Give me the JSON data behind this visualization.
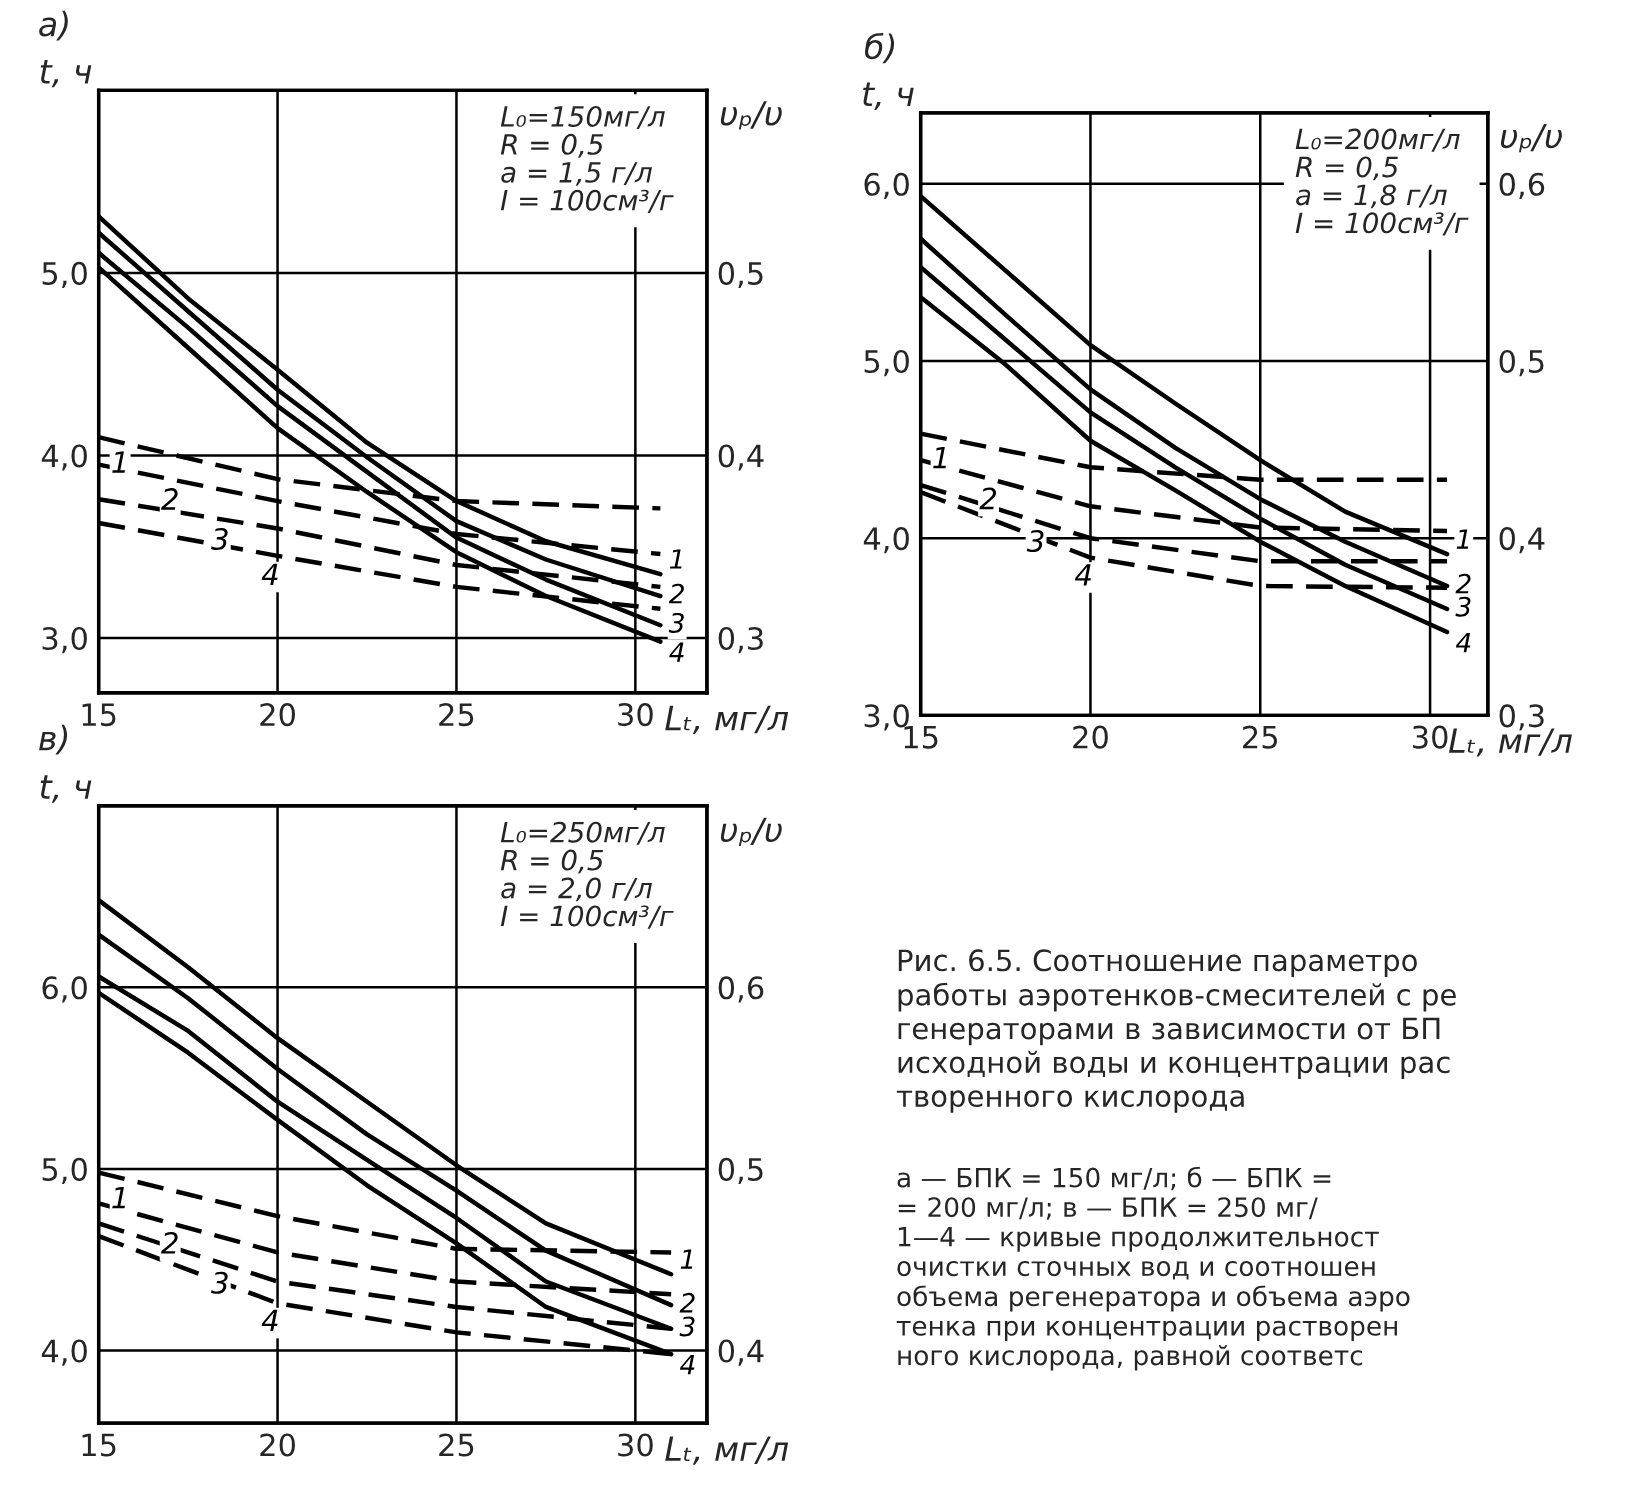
{
  "chart_data": [
    {
      "type": "line",
      "title": "а)",
      "xlabel": "Lₜ, мг/л",
      "ylabel": "t, ч",
      "y2label": "υₚ/υ",
      "grid": true,
      "xlim": [
        15,
        32
      ],
      "xticks": [
        15,
        20,
        25,
        30
      ],
      "ylim": [
        2.7,
        6.0
      ],
      "yticks": [
        {
          "value": 3,
          "label": "3,0"
        },
        {
          "value": 4,
          "label": "4,0"
        },
        {
          "value": 5,
          "label": "5,0"
        }
      ],
      "y2lim": [
        0.27,
        0.6
      ],
      "y2ticks": [
        {
          "value": 0.3,
          "label": "0,3"
        },
        {
          "value": 0.4,
          "label": "0,4"
        },
        {
          "value": 0.5,
          "label": "0,5"
        }
      ],
      "annotations": [
        "L₀=150мг/л",
        "R = 0,5",
        "a = 1,5 г/л",
        "I = 100см³/г"
      ],
      "series": [
        {
          "name": "1",
          "color": "#000000",
          "line_style": "solid",
          "x": [
            15,
            17.5,
            20,
            22.5,
            25,
            27.5,
            30.7
          ],
          "values": [
            5.31,
            4.86,
            4.47,
            4.07,
            3.75,
            3.53,
            3.35
          ]
        },
        {
          "name": "2",
          "color": "#000000",
          "line_style": "solid",
          "x": [
            15,
            17.5,
            20,
            22.5,
            25,
            27.5,
            30.7
          ],
          "values": [
            5.22,
            4.79,
            4.36,
            3.99,
            3.64,
            3.43,
            3.23
          ]
        },
        {
          "name": "3",
          "color": "#000000",
          "line_style": "solid",
          "x": [
            15,
            17.5,
            20,
            22.5,
            25,
            27.5,
            30.7
          ],
          "values": [
            5.11,
            4.7,
            4.27,
            3.91,
            3.55,
            3.32,
            3.07
          ]
        },
        {
          "name": "4",
          "color": "#000000",
          "line_style": "solid",
          "x": [
            15,
            17.5,
            20,
            22.5,
            25,
            27.5,
            30.7
          ],
          "values": [
            5.03,
            4.59,
            4.15,
            3.8,
            3.47,
            3.23,
            2.98
          ]
        },
        {
          "name": "1",
          "color": "#000000",
          "line_style": "dashed",
          "axis": "y2",
          "x": [
            15,
            20,
            25,
            30.7
          ],
          "values": [
            0.41,
            0.387,
            0.375,
            0.371
          ]
        },
        {
          "name": "2",
          "color": "#000000",
          "line_style": "dashed",
          "axis": "y2",
          "x": [
            15,
            20,
            25,
            30.7
          ],
          "values": [
            0.395,
            0.375,
            0.357,
            0.346
          ]
        },
        {
          "name": "3",
          "color": "#000000",
          "line_style": "dashed",
          "axis": "y2",
          "x": [
            15,
            20,
            25,
            30.7
          ],
          "values": [
            0.376,
            0.36,
            0.34,
            0.328
          ]
        },
        {
          "name": "4",
          "color": "#000000",
          "line_style": "dashed",
          "axis": "y2",
          "x": [
            15,
            20,
            25,
            30.7
          ],
          "values": [
            0.363,
            0.345,
            0.328,
            0.316
          ]
        }
      ]
    },
    {
      "type": "line",
      "title": "б)",
      "xlabel": "Lₜ, мг/л",
      "ylabel": "t, ч",
      "y2label": "υₚ/υ",
      "grid": true,
      "xlim": [
        15,
        31.7
      ],
      "xticks": [
        15,
        20,
        25,
        30
      ],
      "ylim": [
        3.0,
        6.4
      ],
      "yticks": [
        {
          "value": 3,
          "label": "3,0"
        },
        {
          "value": 4,
          "label": "4,0"
        },
        {
          "value": 5,
          "label": "5,0"
        },
        {
          "value": 6,
          "label": "6,0"
        }
      ],
      "y2lim": [
        0.3,
        0.64
      ],
      "y2ticks": [
        {
          "value": 0.3,
          "label": "0,3"
        },
        {
          "value": 0.4,
          "label": "0,4"
        },
        {
          "value": 0.5,
          "label": "0,5"
        },
        {
          "value": 0.6,
          "label": "0,6"
        }
      ],
      "annotations": [
        "L₀=200мг/л",
        "R = 0,5",
        "a = 1,8 г/л",
        "I = 100см³/г"
      ],
      "series": [
        {
          "name": "1",
          "color": "#000000",
          "line_style": "solid",
          "x": [
            15,
            17.5,
            20,
            22.5,
            25,
            27.5,
            30.5
          ],
          "values": [
            5.93,
            5.51,
            5.09,
            4.76,
            4.44,
            4.15,
            3.91
          ]
        },
        {
          "name": "2",
          "color": "#000000",
          "line_style": "solid",
          "x": [
            15,
            17.5,
            20,
            22.5,
            25,
            27.5,
            30.5
          ],
          "values": [
            5.69,
            5.26,
            4.84,
            4.51,
            4.22,
            3.98,
            3.73
          ]
        },
        {
          "name": "3",
          "color": "#000000",
          "line_style": "solid",
          "x": [
            15,
            17.5,
            20,
            22.5,
            25,
            27.5,
            30.5
          ],
          "values": [
            5.53,
            5.12,
            4.71,
            4.4,
            4.11,
            3.85,
            3.6
          ]
        },
        {
          "name": "4",
          "color": "#000000",
          "line_style": "solid",
          "x": [
            15,
            17.5,
            20,
            22.5,
            25,
            27.5,
            30.5
          ],
          "values": [
            5.36,
            4.98,
            4.55,
            4.27,
            3.98,
            3.73,
            3.47
          ]
        },
        {
          "name": "1",
          "color": "#000000",
          "line_style": "dashed",
          "axis": "y2",
          "x": [
            15,
            20,
            25,
            30.5
          ],
          "values": [
            0.459,
            0.44,
            0.433,
            0.433
          ]
        },
        {
          "name": "2",
          "color": "#000000",
          "line_style": "dashed",
          "axis": "y2",
          "x": [
            15,
            20,
            25,
            30.5
          ],
          "values": [
            0.444,
            0.418,
            0.406,
            0.404
          ]
        },
        {
          "name": "3",
          "color": "#000000",
          "line_style": "dashed",
          "axis": "y2",
          "x": [
            15,
            20,
            25,
            30.5
          ],
          "values": [
            0.43,
            0.4,
            0.387,
            0.387
          ]
        },
        {
          "name": "4",
          "color": "#000000",
          "line_style": "dashed",
          "axis": "y2",
          "x": [
            15,
            20,
            25,
            30.5
          ],
          "values": [
            0.426,
            0.389,
            0.373,
            0.372
          ]
        }
      ]
    },
    {
      "type": "line",
      "title": "в)",
      "xlabel": "Lₜ, мг/л",
      "ylabel": "t, ч",
      "y2label": "υₚ/υ",
      "grid": true,
      "xlim": [
        15,
        32
      ],
      "xticks": [
        15,
        20,
        25,
        30
      ],
      "ylim": [
        3.6,
        7.0
      ],
      "yticks": [
        {
          "value": 4,
          "label": "4,0"
        },
        {
          "value": 5,
          "label": "5,0"
        },
        {
          "value": 6,
          "label": "6,0"
        }
      ],
      "y2lim": [
        0.36,
        0.7
      ],
      "y2ticks": [
        {
          "value": 0.4,
          "label": "0,4"
        },
        {
          "value": 0.5,
          "label": "0,5"
        },
        {
          "value": 0.6,
          "label": "0,6"
        }
      ],
      "annotations": [
        "L₀=250мг/л",
        "R = 0,5",
        "a = 2,0 г/л",
        "I = 100см³/г"
      ],
      "series": [
        {
          "name": "1",
          "color": "#000000",
          "line_style": "solid",
          "x": [
            15,
            17.5,
            20,
            22.5,
            25,
            27.5,
            31
          ],
          "values": [
            6.48,
            6.11,
            5.72,
            5.37,
            5.02,
            4.7,
            4.42
          ]
        },
        {
          "name": "2",
          "color": "#000000",
          "line_style": "solid",
          "x": [
            15,
            17.5,
            20,
            22.5,
            25,
            27.5,
            31
          ],
          "values": [
            6.29,
            5.94,
            5.55,
            5.19,
            4.88,
            4.55,
            4.25
          ]
        },
        {
          "name": "3",
          "color": "#000000",
          "line_style": "solid",
          "x": [
            15,
            17.5,
            20,
            22.5,
            25,
            27.5,
            31
          ],
          "values": [
            6.06,
            5.76,
            5.37,
            5.05,
            4.73,
            4.38,
            4.12
          ]
        },
        {
          "name": "4",
          "color": "#000000",
          "line_style": "solid",
          "x": [
            15,
            17.5,
            20,
            22.5,
            25,
            27.5,
            31
          ],
          "values": [
            5.97,
            5.64,
            5.27,
            4.91,
            4.59,
            4.24,
            3.98
          ]
        },
        {
          "name": "1",
          "color": "#000000",
          "line_style": "dashed",
          "axis": "y2",
          "x": [
            15,
            20,
            25,
            31
          ],
          "values": [
            0.498,
            0.474,
            0.456,
            0.454
          ]
        },
        {
          "name": "2",
          "color": "#000000",
          "line_style": "dashed",
          "axis": "y2",
          "x": [
            15,
            20,
            25,
            31
          ],
          "values": [
            0.481,
            0.454,
            0.438,
            0.431
          ]
        },
        {
          "name": "3",
          "color": "#000000",
          "line_style": "dashed",
          "axis": "y2",
          "x": [
            15,
            20,
            25,
            31
          ],
          "values": [
            0.47,
            0.438,
            0.424,
            0.412
          ]
        },
        {
          "name": "4",
          "color": "#000000",
          "line_style": "dashed",
          "axis": "y2",
          "x": [
            15,
            20,
            25,
            31
          ],
          "values": [
            0.463,
            0.426,
            0.41,
            0.398
          ]
        }
      ]
    },
    {
      "type": "other",
      "title": "Рис. 6.5. Соотношение параметро\nработы аэротенков-смесителей с ре\nгенераторами в зависимости от БП\nисходной воды и концентрации рас\nтворенного кислорода",
      "annotations": [
        "а — БПК = 150 мг/л; б — БПК =",
        "= 200 мг/л; в — БПК = 250 мг/",
        "1—4 — кривые продолжительност",
        "очистки сточных вод и соотношен",
        "объема регенератора и объема аэро",
        "тенка при концентрации растворен",
        "ного кислорода, равной соответс"
      ]
    }
  ]
}
